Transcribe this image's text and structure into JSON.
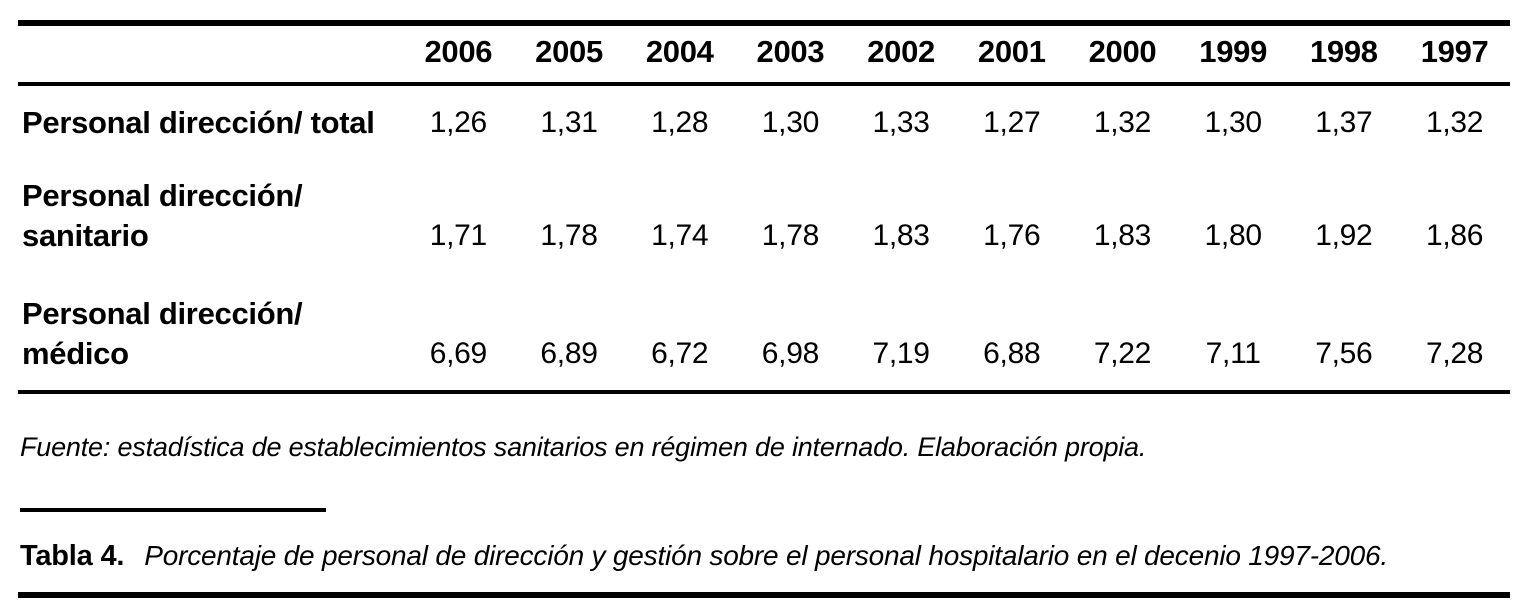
{
  "page": {
    "background": "#ffffff",
    "text_color": "#000000",
    "rule_color": "#000000"
  },
  "table": {
    "column_headers": [
      "2006",
      "2005",
      "2004",
      "2003",
      "2002",
      "2001",
      "2000",
      "1999",
      "1998",
      "1997"
    ],
    "rows": [
      {
        "label_line1": "Personal dirección/ total",
        "label_line2": "",
        "values": [
          "1,26",
          "1,31",
          "1,28",
          "1,30",
          "1,33",
          "1,27",
          "1,32",
          "1,30",
          "1,37",
          "1,32"
        ]
      },
      {
        "label_line1": "Personal dirección/",
        "label_line2": "sanitario",
        "values": [
          "1,71",
          "1,78",
          "1,74",
          "1,78",
          "1,83",
          "1,76",
          "1,83",
          "1,80",
          "1,92",
          "1,86"
        ]
      },
      {
        "label_line1": "Personal dirección/",
        "label_line2": "médico",
        "values": [
          "6,69",
          "6,89",
          "6,72",
          "6,98",
          "7,19",
          "6,88",
          "7,22",
          "7,11",
          "7,56",
          "7,28"
        ]
      }
    ]
  },
  "source_note": "Fuente: estadística de establecimientos sanitarios en régimen de internado. Elaboración propia.",
  "caption": {
    "label": "Tabla 4.",
    "text": "Porcentaje de personal de dirección y gestión sobre el personal hospitalario en el decenio 1997-2006."
  }
}
